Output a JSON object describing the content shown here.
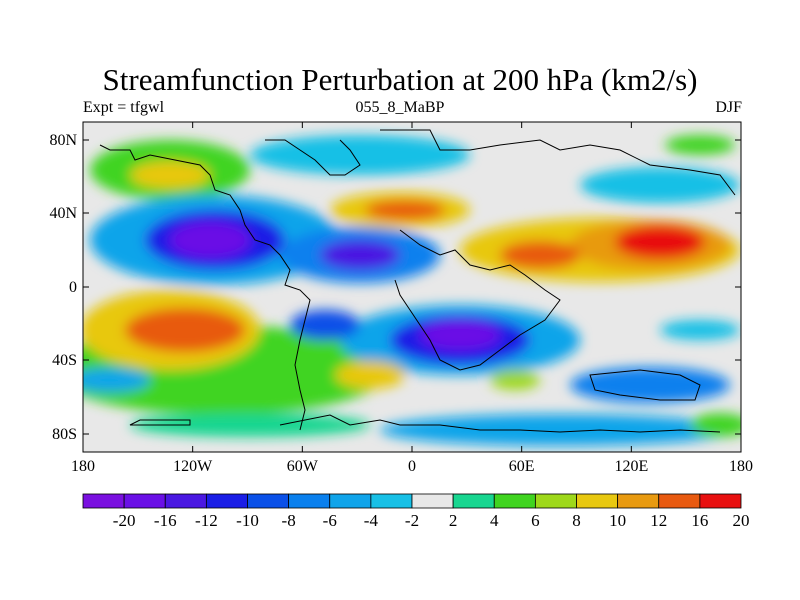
{
  "title": "Streamfunction Perturbation at 200 hPa (km2/s)",
  "left_string": "Expt = tfgwl",
  "center_string": "055_8_MaBP",
  "right_string": "DJF",
  "x_ticks": [
    "180",
    "120W",
    "60W",
    "0",
    "60E",
    "120E",
    "180"
  ],
  "y_ticks": [
    "80N",
    "40N",
    "0",
    "40S",
    "80S"
  ],
  "colorbar": {
    "labels": [
      "-20",
      "-16",
      "-12",
      "-10",
      "-8",
      "-6",
      "-4",
      "-2",
      "2",
      "4",
      "6",
      "8",
      "10",
      "12",
      "16",
      "20"
    ],
    "colors": [
      "#7a10e0",
      "#6a10e6",
      "#4a18e2",
      "#1a1ee6",
      "#0a50e8",
      "#0a80ee",
      "#10a4ea",
      "#18c0e6",
      "#e8e8e8",
      "#18d690",
      "#40d420",
      "#9ed81a",
      "#e8c810",
      "#e89a10",
      "#e85a10",
      "#e81010"
    ]
  }
}
